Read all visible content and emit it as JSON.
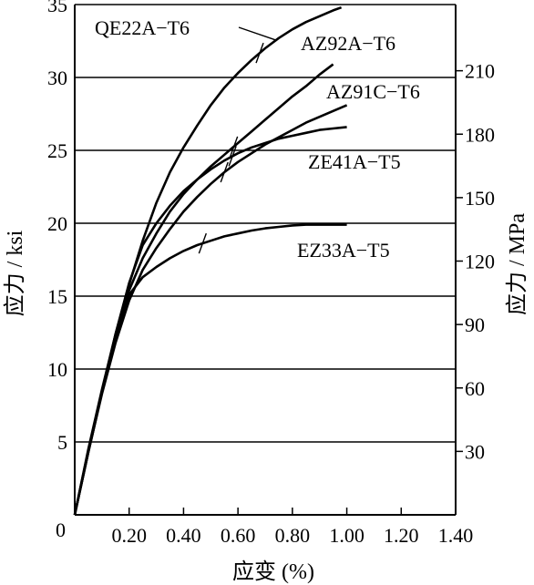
{
  "chart_data": {
    "type": "line",
    "xlabel": "应变 (%)",
    "ylabel": "应力 / ksi",
    "y2label": "应力 / MPa",
    "xlim": [
      0,
      1.4
    ],
    "ylim": [
      0,
      35
    ],
    "y2lim": [
      0,
      241.3
    ],
    "x_ticks": [
      0.2,
      0.4,
      0.6,
      0.8,
      1.0,
      1.2,
      1.4
    ],
    "x_tick_labels": [
      "0.20",
      "0.40",
      "0.60",
      "0.80",
      "1.00",
      "1.20",
      "1.40"
    ],
    "origin_label": "0",
    "y_ticks": [
      5,
      10,
      15,
      20,
      25,
      30,
      35
    ],
    "y_tick_labels": [
      "5",
      "10",
      "15",
      "20",
      "25",
      "30",
      "35"
    ],
    "y2_ticks": [
      30,
      60,
      90,
      120,
      150,
      180,
      210
    ],
    "y2_tick_labels": [
      "30",
      "60",
      "90",
      "120",
      "150",
      "180",
      "210"
    ],
    "grid": {
      "horizontal": true,
      "vertical": false
    },
    "legend": "labels on curves",
    "series": [
      {
        "name": "QE22A−T6",
        "x": [
          0,
          0.05,
          0.1,
          0.15,
          0.2,
          0.25,
          0.3,
          0.35,
          0.4,
          0.45,
          0.5,
          0.55,
          0.6,
          0.65,
          0.7,
          0.75,
          0.8,
          0.85,
          0.9,
          0.95,
          0.98
        ],
        "y": [
          0,
          4.5,
          8.6,
          12.4,
          15.8,
          18.8,
          21.4,
          23.5,
          25.2,
          26.7,
          28.1,
          29.3,
          30.3,
          31.2,
          32.0,
          32.7,
          33.3,
          33.8,
          34.2,
          34.6,
          34.8
        ],
        "yield_x": 0.68
      },
      {
        "name": "AZ92A−T6",
        "x": [
          0,
          0.05,
          0.1,
          0.15,
          0.2,
          0.25,
          0.3,
          0.35,
          0.4,
          0.45,
          0.5,
          0.55,
          0.6,
          0.65,
          0.7,
          0.75,
          0.8,
          0.85,
          0.9,
          0.95
        ],
        "y": [
          0,
          4.4,
          8.5,
          12.2,
          15.4,
          17.6,
          19.3,
          20.8,
          22.0,
          23.0,
          23.9,
          24.7,
          25.5,
          26.3,
          27.1,
          27.9,
          28.7,
          29.4,
          30.2,
          30.9
        ],
        "yield_x": 0.585
      },
      {
        "name": "AZ91C−T6",
        "x": [
          0,
          0.05,
          0.1,
          0.15,
          0.2,
          0.25,
          0.3,
          0.35,
          0.4,
          0.45,
          0.5,
          0.55,
          0.6,
          0.65,
          0.7,
          0.75,
          0.8,
          0.85,
          0.9,
          0.95,
          1.0
        ],
        "y": [
          0,
          4.3,
          8.3,
          11.8,
          14.7,
          16.8,
          18.3,
          19.6,
          20.8,
          21.8,
          22.7,
          23.5,
          24.2,
          24.8,
          25.4,
          25.9,
          26.4,
          26.9,
          27.3,
          27.7,
          28.1
        ],
        "yield_x": 0.55
      },
      {
        "name": "ZE41A−T5",
        "x": [
          0,
          0.05,
          0.1,
          0.15,
          0.2,
          0.25,
          0.3,
          0.35,
          0.4,
          0.45,
          0.5,
          0.55,
          0.6,
          0.65,
          0.7,
          0.75,
          0.8,
          0.85,
          0.9,
          0.95,
          1.0
        ],
        "y": [
          0,
          4.3,
          8.4,
          12.4,
          15.9,
          18.5,
          20.0,
          21.2,
          22.2,
          23.0,
          23.7,
          24.3,
          24.8,
          25.2,
          25.5,
          25.8,
          26.0,
          26.2,
          26.4,
          26.5,
          26.6
        ],
        "yield_x": 0.58
      },
      {
        "name": "EZ33A−T5",
        "x": [
          0,
          0.05,
          0.1,
          0.15,
          0.2,
          0.25,
          0.3,
          0.35,
          0.4,
          0.45,
          0.5,
          0.55,
          0.6,
          0.65,
          0.7,
          0.75,
          0.8,
          0.85,
          0.9,
          0.95,
          1.0
        ],
        "y": [
          0,
          4.3,
          8.4,
          12.3,
          15.1,
          16.3,
          17.0,
          17.6,
          18.1,
          18.5,
          18.8,
          19.1,
          19.3,
          19.5,
          19.65,
          19.75,
          19.85,
          19.9,
          19.9,
          19.9,
          19.9
        ],
        "yield_x": 0.47
      }
    ]
  }
}
